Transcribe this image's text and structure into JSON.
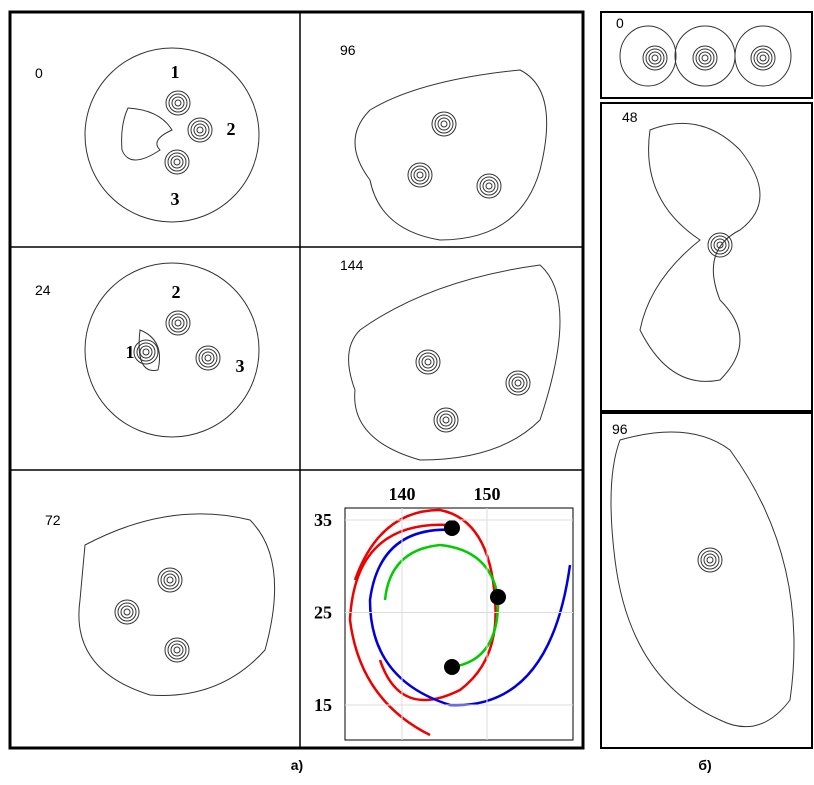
{
  "panels_a": [
    {
      "label": "0",
      "vortices": [
        "1",
        "2",
        "3"
      ]
    },
    {
      "label": "96"
    },
    {
      "label": "24",
      "vortices": [
        "2",
        "1",
        "3"
      ]
    },
    {
      "label": "144"
    },
    {
      "label": "72"
    }
  ],
  "inset": {
    "xticks": [
      140,
      150
    ],
    "yticks": [
      35,
      25,
      15
    ]
  },
  "panels_b": [
    {
      "label": "0"
    },
    {
      "label": "48"
    },
    {
      "label": "96"
    }
  ],
  "captions": [
    "а)",
    "б)"
  ]
}
